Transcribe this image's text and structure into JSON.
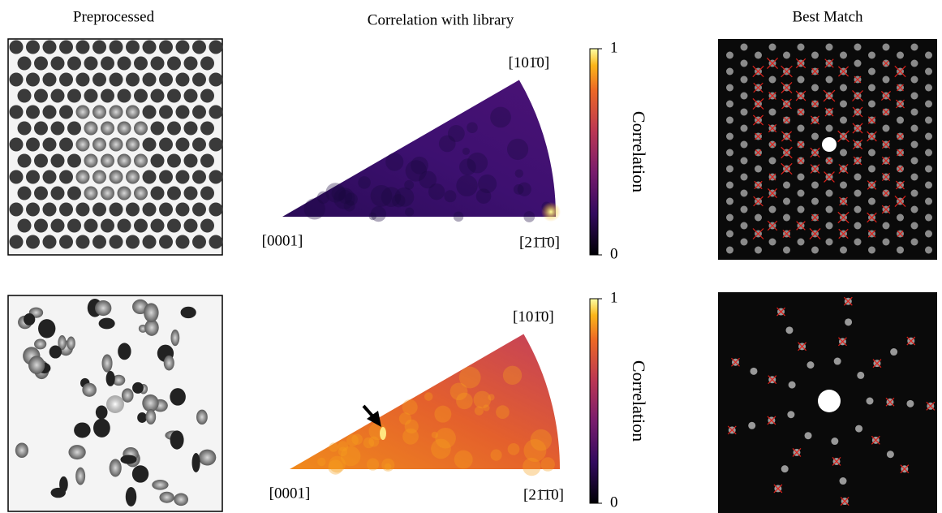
{
  "columns": [
    "Preprocessed",
    "Correlation with library",
    "Best Match"
  ],
  "rows": [
    {
      "ipf": {
        "top": "[101̄0]",
        "left": "[0001]",
        "right": "[21̄1̄0]"
      },
      "colorbar": {
        "label": "Correlation",
        "ticks": [
          0,
          1
        ]
      }
    },
    {
      "ipf": {
        "top": "[101̄0]",
        "left": "[0001]",
        "right": "[21̄1̄0]"
      },
      "colorbar": {
        "label": "Correlation",
        "ticks": [
          0,
          1
        ]
      }
    }
  ]
}
